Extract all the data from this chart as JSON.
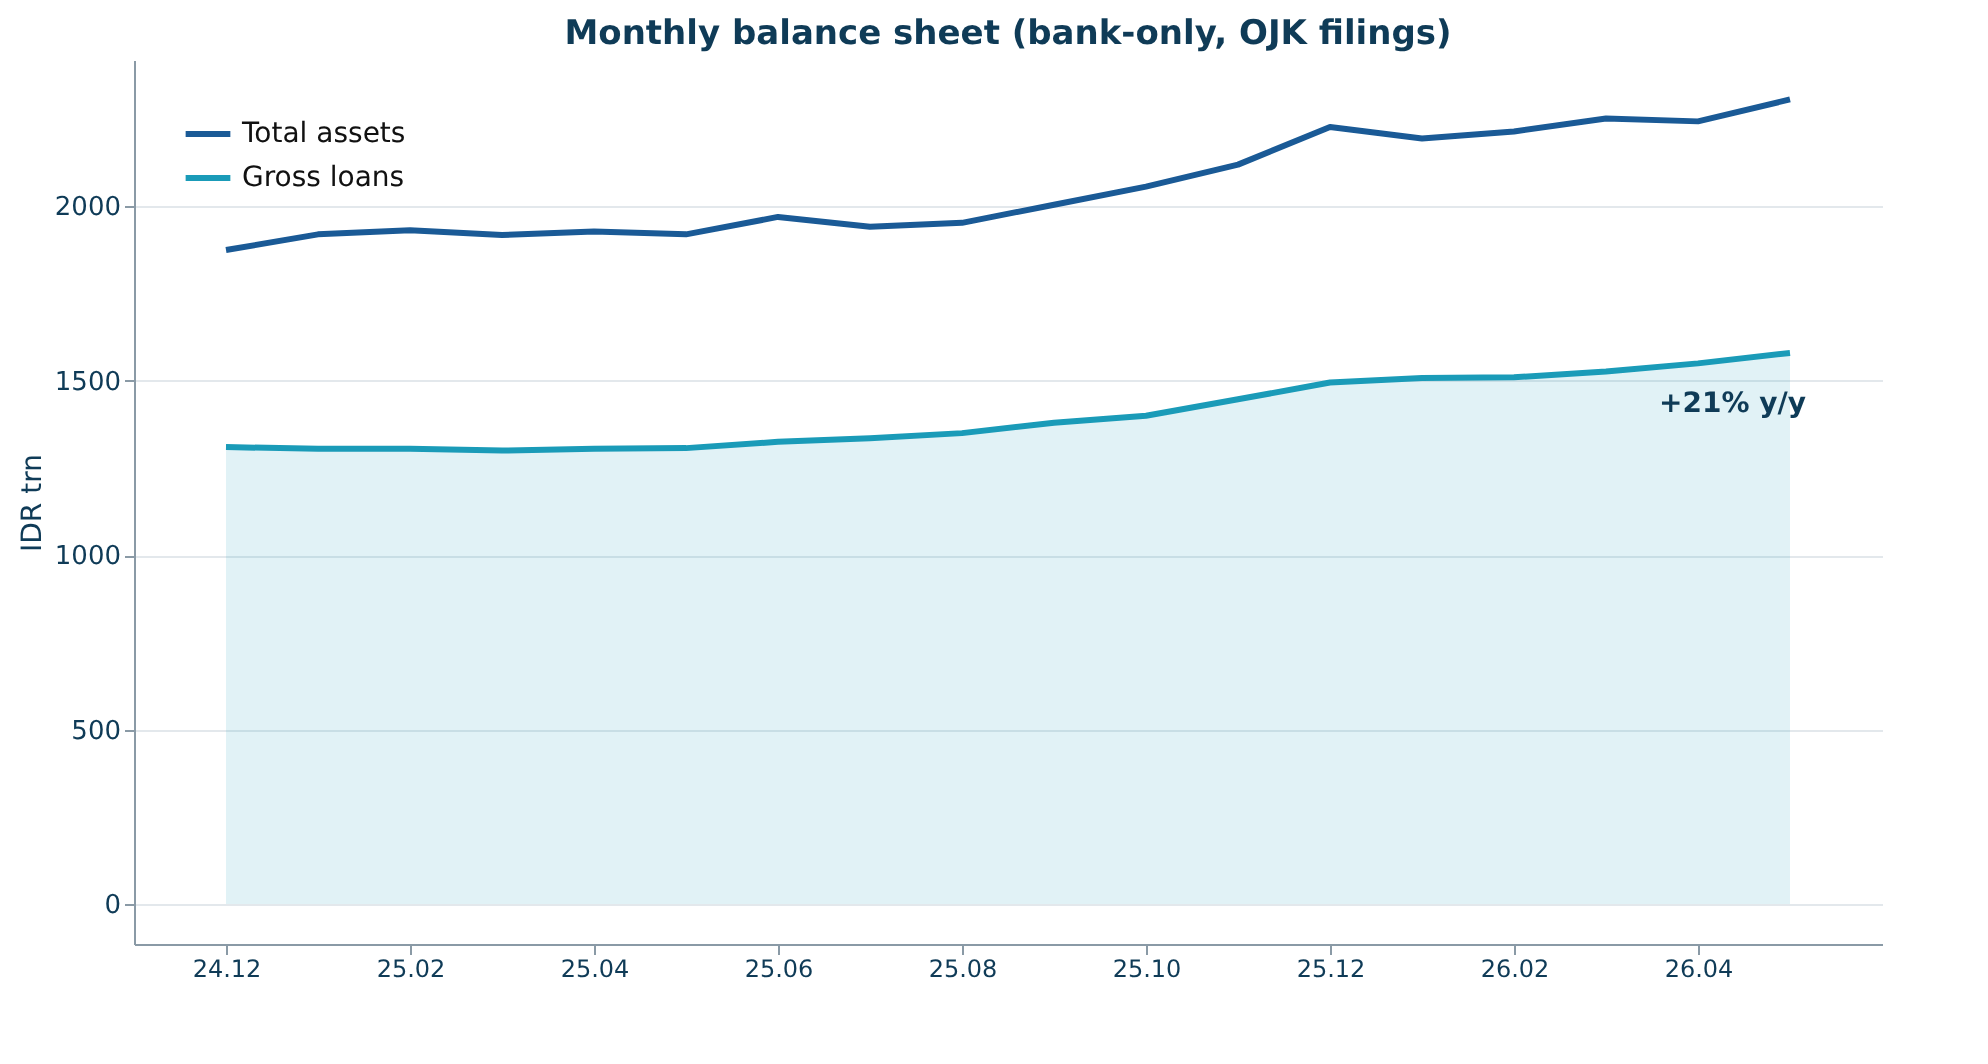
{
  "chart_data": {
    "type": "line",
    "title": "Monthly balance sheet (bank-only, OJK filings)",
    "ylabel": "IDR trn",
    "categories": [
      "24.12",
      null,
      "25.02",
      null,
      "25.04",
      null,
      "25.06",
      null,
      "25.08",
      null,
      "25.10",
      null,
      "25.12",
      null,
      "26.02",
      null,
      "26.04",
      null
    ],
    "series": [
      {
        "name": "Total assets",
        "color": "#1a5a96",
        "values": [
          1875,
          1920,
          1932,
          1918,
          1928,
          1920,
          1970,
          1942,
          1953,
          2005,
          2057,
          2120,
          2228,
          2195,
          2215,
          2252,
          2244,
          2307
        ]
      },
      {
        "name": "Gross loans",
        "type": "area",
        "color": "#1a9bb8",
        "values": [
          1310,
          1305,
          1305,
          1300,
          1305,
          1307,
          1325,
          1335,
          1350,
          1380,
          1400,
          1447,
          1495,
          1508,
          1510,
          1527,
          1550,
          1580
        ]
      }
    ],
    "ylim": [
      -115,
      2420
    ],
    "yticks": [
      0,
      500,
      1000,
      1500,
      2000
    ],
    "grid": "y",
    "legend": "top left",
    "annotations": [
      "+21% y/y"
    ]
  }
}
